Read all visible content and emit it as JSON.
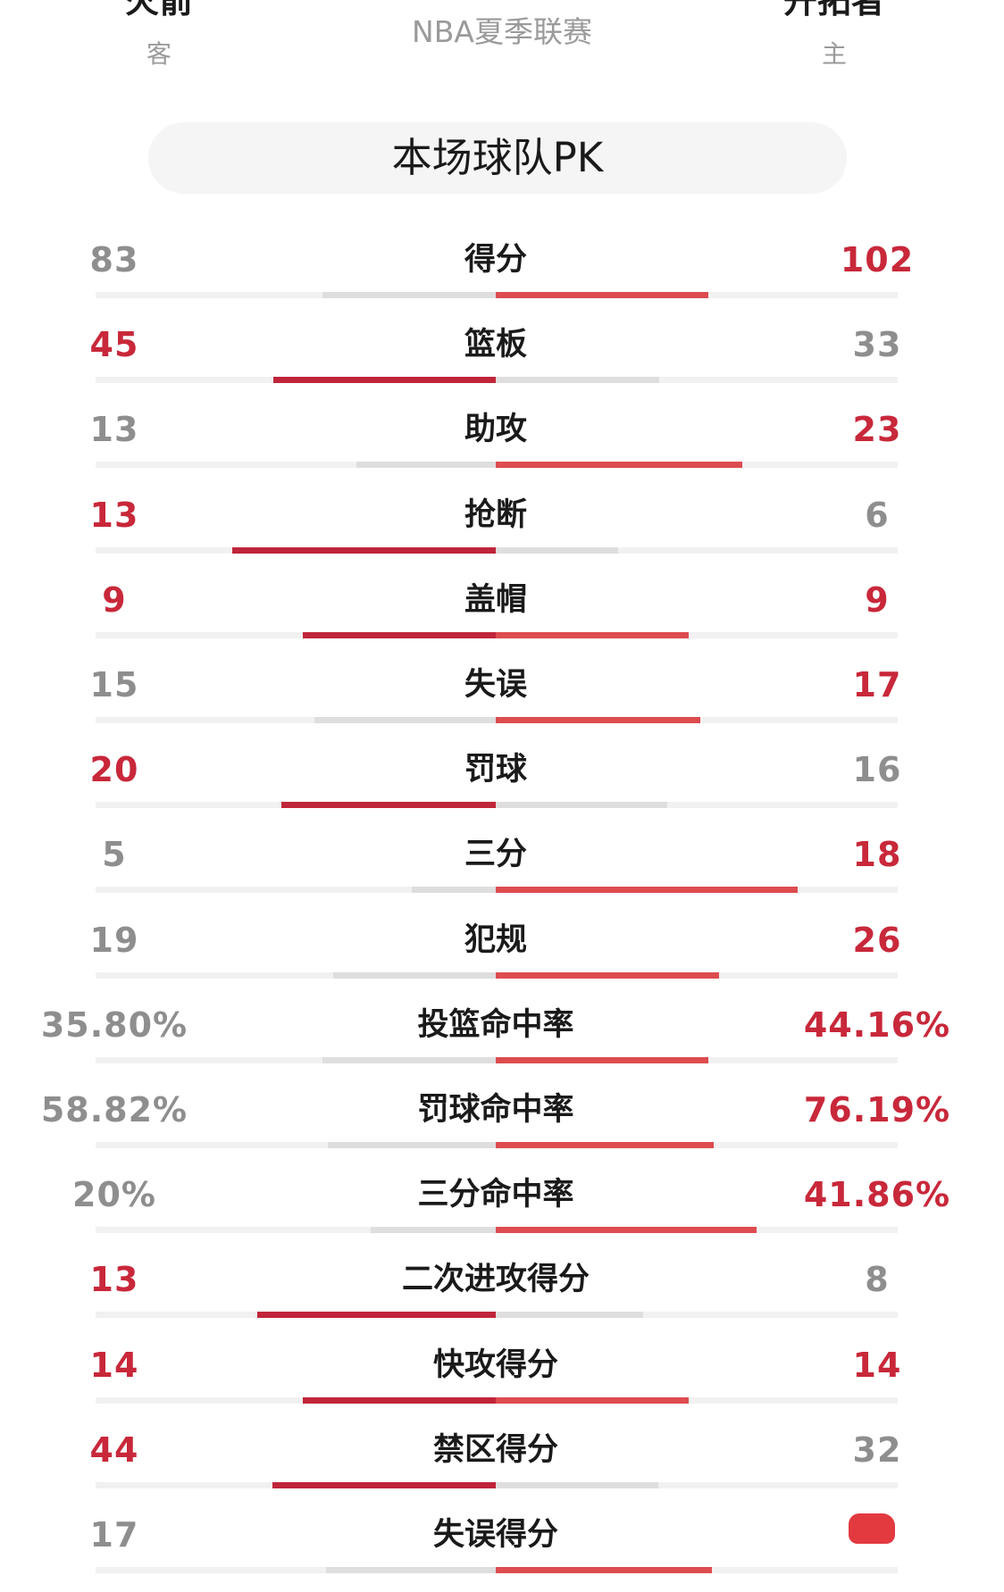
{
  "header": {
    "away_team": "火箭",
    "away_side": "客",
    "league": "NBA夏季联赛",
    "home_team": "开拓者",
    "home_side": "主"
  },
  "section_title": "本场球队PK",
  "colors": {
    "win_left": "#c0253a",
    "win_right": "#dd4c4f",
    "lose": "#dedede",
    "win_text": "#c8283a",
    "lose_text": "#8e8e8e"
  },
  "stats": [
    {
      "label": "得分",
      "away": "83",
      "home": "102",
      "away_share": 0.449,
      "home_share": 0.551,
      "leader": "home"
    },
    {
      "label": "篮板",
      "away": "45",
      "home": "33",
      "away_share": 0.577,
      "home_share": 0.423,
      "leader": "away"
    },
    {
      "label": "助攻",
      "away": "13",
      "home": "23",
      "away_share": 0.361,
      "home_share": 0.639,
      "leader": "home"
    },
    {
      "label": "抢断",
      "away": "13",
      "home": "6",
      "away_share": 0.684,
      "home_share": 0.316,
      "leader": "away"
    },
    {
      "label": "盖帽",
      "away": "9",
      "home": "9",
      "away_share": 0.5,
      "home_share": 0.5,
      "leader": "both"
    },
    {
      "label": "失误",
      "away": "15",
      "home": "17",
      "away_share": 0.469,
      "home_share": 0.531,
      "leader": "home"
    },
    {
      "label": "罚球",
      "away": "20",
      "home": "16",
      "away_share": 0.556,
      "home_share": 0.444,
      "leader": "away"
    },
    {
      "label": "三分",
      "away": "5",
      "home": "18",
      "away_share": 0.217,
      "home_share": 0.783,
      "leader": "home"
    },
    {
      "label": "犯规",
      "away": "19",
      "home": "26",
      "away_share": 0.422,
      "home_share": 0.578,
      "leader": "home"
    },
    {
      "label": "投篮命中率",
      "away": "35.80%",
      "home": "44.16%",
      "away_share": 0.448,
      "home_share": 0.552,
      "leader": "home"
    },
    {
      "label": "罚球命中率",
      "away": "58.82%",
      "home": "76.19%",
      "away_share": 0.436,
      "home_share": 0.564,
      "leader": "home"
    },
    {
      "label": "三分命中率",
      "away": "20%",
      "home": "41.86%",
      "away_share": 0.323,
      "home_share": 0.677,
      "leader": "home"
    },
    {
      "label": "二次进攻得分",
      "away": "13",
      "home": "8",
      "away_share": 0.619,
      "home_share": 0.381,
      "leader": "away"
    },
    {
      "label": "快攻得分",
      "away": "14",
      "home": "14",
      "away_share": 0.5,
      "home_share": 0.5,
      "leader": "both"
    },
    {
      "label": "禁区得分",
      "away": "44",
      "home": "32",
      "away_share": 0.579,
      "home_share": 0.421,
      "leader": "away"
    },
    {
      "label": "失误得分",
      "away": "17",
      "home": "",
      "away_share": 0.44,
      "home_share": 0.56,
      "leader": "home"
    }
  ]
}
